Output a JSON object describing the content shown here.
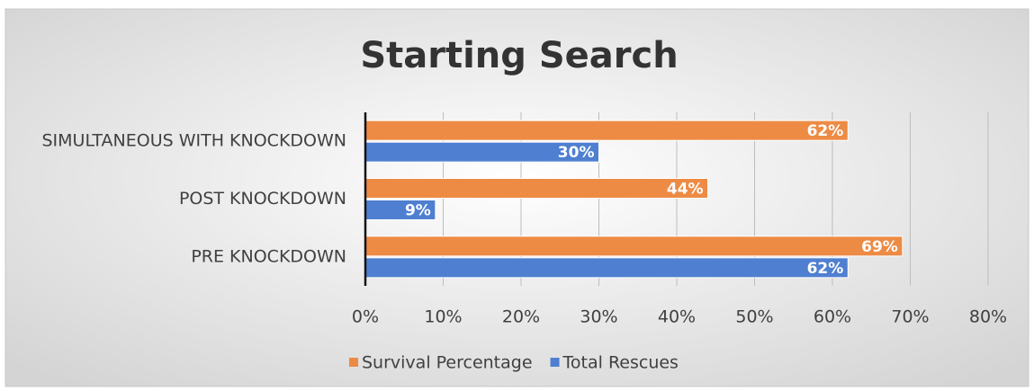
{
  "chart_data": {
    "type": "barh",
    "title": "Starting Search",
    "categories": [
      "SIMULTANEOUS WITH KNOCKDOWN",
      "POST KNOCKDOWN",
      "PRE KNOCKDOWN"
    ],
    "series": [
      {
        "name": "Survival Percentage",
        "color": "#ed8b45",
        "values": [
          62,
          44,
          69
        ],
        "value_labels": [
          "62%",
          "44%",
          "69%"
        ]
      },
      {
        "name": "Total Rescues",
        "color": "#4f7fd0",
        "values": [
          30,
          9,
          62
        ],
        "value_labels": [
          "30%",
          "9%",
          "62%"
        ]
      }
    ],
    "xlim": [
      0,
      80
    ],
    "xticks": [
      {
        "value": 0,
        "label": "0%"
      },
      {
        "value": 10,
        "label": "10%"
      },
      {
        "value": 20,
        "label": "20%"
      },
      {
        "value": 30,
        "label": "30%"
      },
      {
        "value": 40,
        "label": "40%"
      },
      {
        "value": 50,
        "label": "50%"
      },
      {
        "value": 60,
        "label": "60%"
      },
      {
        "value": 70,
        "label": "70%"
      },
      {
        "value": 80,
        "label": "80%"
      }
    ],
    "grid": true,
    "legend": "bottom"
  }
}
